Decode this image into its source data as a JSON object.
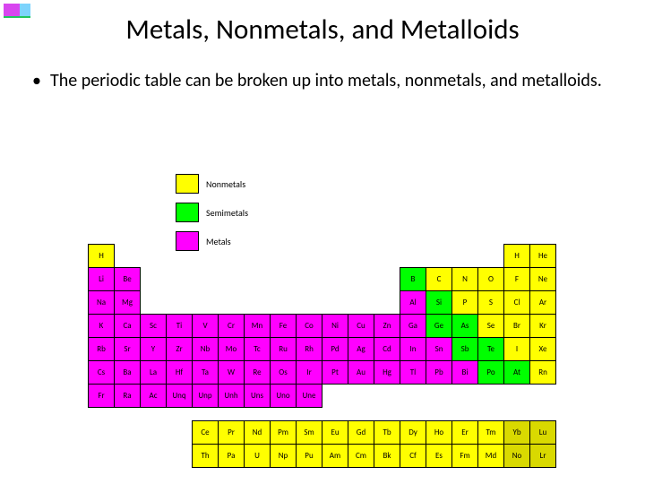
{
  "title": "Metals, Nonmetals, and Metalloids",
  "bullet": "The periodic table can be broken up into metals, nonmetals, and metalloids.",
  "colors": {
    "nonmetal": "#ffff00",
    "semimetal": "#00ff00",
    "metal": "#ff00ff",
    "lanth": "#ffff00",
    "lanth2": "#d9d900"
  },
  "legend": {
    "nonmetals": "Nonmetals",
    "semimetals": "Semimetals",
    "metals": "Metals"
  },
  "rows": [
    [
      {
        "s": "H",
        "c": "nonmetal"
      },
      null,
      null,
      null,
      null,
      null,
      null,
      null,
      null,
      null,
      null,
      null,
      null,
      null,
      null,
      null,
      {
        "s": "H",
        "c": "nonmetal"
      },
      {
        "s": "He",
        "c": "nonmetal"
      }
    ],
    [
      {
        "s": "Li",
        "c": "metal"
      },
      {
        "s": "Be",
        "c": "metal"
      },
      null,
      null,
      null,
      null,
      null,
      null,
      null,
      null,
      null,
      null,
      {
        "s": "B",
        "c": "semimetal"
      },
      {
        "s": "C",
        "c": "nonmetal"
      },
      {
        "s": "N",
        "c": "nonmetal"
      },
      {
        "s": "O",
        "c": "nonmetal"
      },
      {
        "s": "F",
        "c": "nonmetal"
      },
      {
        "s": "Ne",
        "c": "nonmetal"
      }
    ],
    [
      {
        "s": "Na",
        "c": "metal"
      },
      {
        "s": "Mg",
        "c": "metal"
      },
      null,
      null,
      null,
      null,
      null,
      null,
      null,
      null,
      null,
      null,
      {
        "s": "Al",
        "c": "metal"
      },
      {
        "s": "Si",
        "c": "semimetal"
      },
      {
        "s": "P",
        "c": "nonmetal"
      },
      {
        "s": "S",
        "c": "nonmetal"
      },
      {
        "s": "Cl",
        "c": "nonmetal"
      },
      {
        "s": "Ar",
        "c": "nonmetal"
      }
    ],
    [
      {
        "s": "K",
        "c": "metal"
      },
      {
        "s": "Ca",
        "c": "metal"
      },
      {
        "s": "Sc",
        "c": "metal"
      },
      {
        "s": "Ti",
        "c": "metal"
      },
      {
        "s": "V",
        "c": "metal"
      },
      {
        "s": "Cr",
        "c": "metal"
      },
      {
        "s": "Mn",
        "c": "metal"
      },
      {
        "s": "Fe",
        "c": "metal"
      },
      {
        "s": "Co",
        "c": "metal"
      },
      {
        "s": "Ni",
        "c": "metal"
      },
      {
        "s": "Cu",
        "c": "metal"
      },
      {
        "s": "Zn",
        "c": "metal"
      },
      {
        "s": "Ga",
        "c": "metal"
      },
      {
        "s": "Ge",
        "c": "semimetal"
      },
      {
        "s": "As",
        "c": "semimetal"
      },
      {
        "s": "Se",
        "c": "nonmetal"
      },
      {
        "s": "Br",
        "c": "nonmetal"
      },
      {
        "s": "Kr",
        "c": "nonmetal"
      }
    ],
    [
      {
        "s": "Rb",
        "c": "metal"
      },
      {
        "s": "Sr",
        "c": "metal"
      },
      {
        "s": "Y",
        "c": "metal"
      },
      {
        "s": "Zr",
        "c": "metal"
      },
      {
        "s": "Nb",
        "c": "metal"
      },
      {
        "s": "Mo",
        "c": "metal"
      },
      {
        "s": "Tc",
        "c": "metal"
      },
      {
        "s": "Ru",
        "c": "metal"
      },
      {
        "s": "Rh",
        "c": "metal"
      },
      {
        "s": "Pd",
        "c": "metal"
      },
      {
        "s": "Ag",
        "c": "metal"
      },
      {
        "s": "Cd",
        "c": "metal"
      },
      {
        "s": "In",
        "c": "metal"
      },
      {
        "s": "Sn",
        "c": "metal"
      },
      {
        "s": "Sb",
        "c": "semimetal"
      },
      {
        "s": "Te",
        "c": "semimetal"
      },
      {
        "s": "I",
        "c": "nonmetal"
      },
      {
        "s": "Xe",
        "c": "nonmetal"
      }
    ],
    [
      {
        "s": "Cs",
        "c": "metal"
      },
      {
        "s": "Ba",
        "c": "metal"
      },
      {
        "s": "La",
        "c": "metal"
      },
      {
        "s": "Hf",
        "c": "metal"
      },
      {
        "s": "Ta",
        "c": "metal"
      },
      {
        "s": "W",
        "c": "metal"
      },
      {
        "s": "Re",
        "c": "metal"
      },
      {
        "s": "Os",
        "c": "metal"
      },
      {
        "s": "Ir",
        "c": "metal"
      },
      {
        "s": "Pt",
        "c": "metal"
      },
      {
        "s": "Au",
        "c": "metal"
      },
      {
        "s": "Hg",
        "c": "metal"
      },
      {
        "s": "Tl",
        "c": "metal"
      },
      {
        "s": "Pb",
        "c": "metal"
      },
      {
        "s": "Bi",
        "c": "metal"
      },
      {
        "s": "Po",
        "c": "semimetal"
      },
      {
        "s": "At",
        "c": "semimetal"
      },
      {
        "s": "Rn",
        "c": "nonmetal"
      }
    ],
    [
      {
        "s": "Fr",
        "c": "metal"
      },
      {
        "s": "Ra",
        "c": "metal"
      },
      {
        "s": "Ac",
        "c": "metal"
      },
      {
        "s": "Unq",
        "c": "metal"
      },
      {
        "s": "Unp",
        "c": "metal"
      },
      {
        "s": "Unh",
        "c": "metal"
      },
      {
        "s": "Uns",
        "c": "metal"
      },
      {
        "s": "Uno",
        "c": "metal"
      },
      {
        "s": "Une",
        "c": "metal"
      },
      null,
      null,
      null,
      null,
      null,
      null,
      null,
      null,
      null
    ]
  ],
  "lanthanides": [
    [
      {
        "s": "Ce",
        "c": "lanth"
      },
      {
        "s": "Pr",
        "c": "lanth"
      },
      {
        "s": "Nd",
        "c": "lanth"
      },
      {
        "s": "Pm",
        "c": "lanth"
      },
      {
        "s": "Sm",
        "c": "lanth"
      },
      {
        "s": "Eu",
        "c": "lanth"
      },
      {
        "s": "Gd",
        "c": "lanth"
      },
      {
        "s": "Tb",
        "c": "lanth"
      },
      {
        "s": "Dy",
        "c": "lanth"
      },
      {
        "s": "Ho",
        "c": "lanth"
      },
      {
        "s": "Er",
        "c": "lanth"
      },
      {
        "s": "Tm",
        "c": "lanth"
      },
      {
        "s": "Yb",
        "c": "lanth2"
      },
      {
        "s": "Lu",
        "c": "lanth2"
      }
    ],
    [
      {
        "s": "Th",
        "c": "lanth"
      },
      {
        "s": "Pa",
        "c": "lanth"
      },
      {
        "s": "U",
        "c": "lanth"
      },
      {
        "s": "Np",
        "c": "lanth"
      },
      {
        "s": "Pu",
        "c": "lanth"
      },
      {
        "s": "Am",
        "c": "lanth"
      },
      {
        "s": "Cm",
        "c": "lanth"
      },
      {
        "s": "Bk",
        "c": "lanth"
      },
      {
        "s": "Cf",
        "c": "lanth"
      },
      {
        "s": "Es",
        "c": "lanth"
      },
      {
        "s": "Fm",
        "c": "lanth"
      },
      {
        "s": "Md",
        "c": "lanth"
      },
      {
        "s": "No",
        "c": "lanth2"
      },
      {
        "s": "Lr",
        "c": "lanth2"
      }
    ]
  ]
}
